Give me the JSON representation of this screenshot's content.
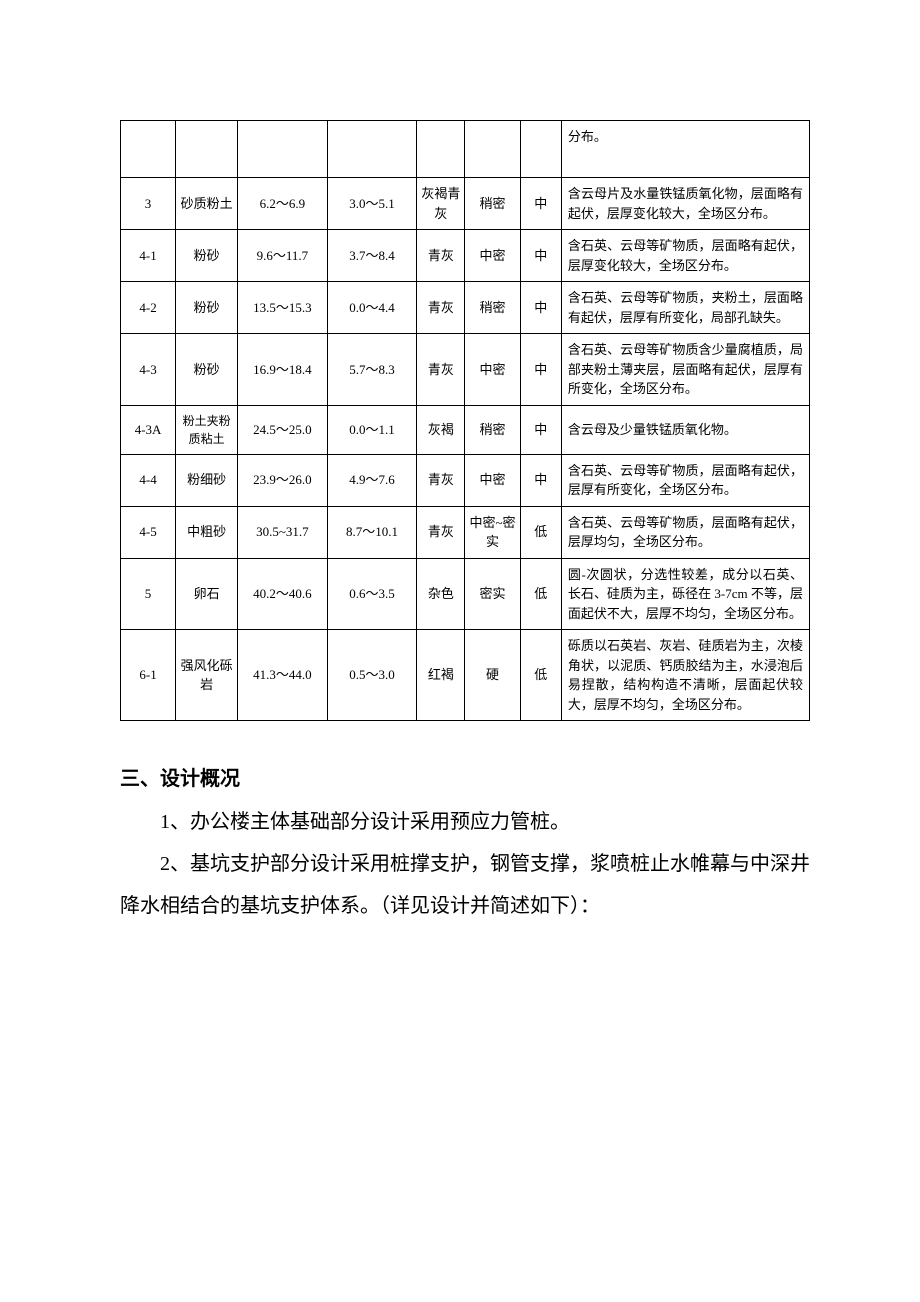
{
  "table": {
    "rows": [
      {
        "c0": "",
        "c1": "",
        "c2": "",
        "c3": "",
        "c4": "",
        "c5": "",
        "c6": "",
        "c7": "分布。",
        "partial": true
      },
      {
        "c0": "3",
        "c1": "砂质粉土",
        "c2": "6.2～6.9",
        "c3": "3.0～5.1",
        "c4": "灰褐青灰",
        "c5": "稍密",
        "c6": "中",
        "c7": "含云母片及水量铁锰质氧化物，层面略有起伏，层厚变化较大，全场区分布。"
      },
      {
        "c0": "4-1",
        "c1": "粉砂",
        "c2": "9.6～11.7",
        "c3": "3.7～8.4",
        "c4": "青灰",
        "c5": "中密",
        "c6": "中",
        "c7": "含石英、云母等矿物质，层面略有起伏，层厚变化较大，全场区分布。"
      },
      {
        "c0": "4-2",
        "c1": "粉砂",
        "c2": "13.5～15.3",
        "c3": "0.0～4.4",
        "c4": "青灰",
        "c5": "稍密",
        "c6": "中",
        "c7": "含石英、云母等矿物质，夹粉土，层面略有起伏，层厚有所变化，局部孔缺失。"
      },
      {
        "c0": "4-3",
        "c1": "粉砂",
        "c2": "16.9～18.4",
        "c3": "5.7～8.3",
        "c4": "青灰",
        "c5": "中密",
        "c6": "中",
        "c7": "含石英、云母等矿物质含少量腐植质，局部夹粉土薄夹层，层面略有起伏，层厚有所变化，全场区分布。"
      },
      {
        "c0": "4-3A",
        "c1": "粉土夹粉质粘土",
        "c1_small": true,
        "c2": "24.5～25.0",
        "c3": "0.0～1.1",
        "c4": "灰褐",
        "c5": "稍密",
        "c6": "中",
        "c7": "含云母及少量铁锰质氧化物。"
      },
      {
        "c0": "4-4",
        "c1": "粉细砂",
        "c2": "23.9～26.0",
        "c3": "4.9～7.6",
        "c4": "青灰",
        "c5": "中密",
        "c6": "中",
        "c7": "含石英、云母等矿物质，层面略有起伏，层厚有所变化，全场区分布。"
      },
      {
        "c0": "4-5",
        "c1": "中粗砂",
        "c2": "30.5~31.7",
        "c3": "8.7～10.1",
        "c4": "青灰",
        "c5": "中密~密实",
        "c6": "低",
        "c7": "含石英、云母等矿物质，层面略有起伏，层厚均匀，全场区分布。"
      },
      {
        "c0": "5",
        "c1": "卵石",
        "c2": "40.2～40.6",
        "c3": "0.6～3.5",
        "c4": "杂色",
        "c5": "密实",
        "c6": "低",
        "c7": "圆-次圆状，分选性较差，成分以石英、长石、硅质为主，砾径在 3-7cm 不等，层面起伏不大，层厚不均匀，全场区分布。"
      },
      {
        "c0": "6-1",
        "c1": "强风化砾岩",
        "c2": "41.3～44.0",
        "c3": "0.5～3.0",
        "c4": "红褐",
        "c5": "硬",
        "c6": "低",
        "c7": "砾质以石英岩、灰岩、硅质岩为主，次棱角状，以泥质、钙质胶结为主，水浸泡后易捏散，结构构造不清晰，层面起伏较大，层厚不均匀，全场区分布。"
      }
    ]
  },
  "section": {
    "title": "三、设计概况",
    "p1": "1、办公楼主体基础部分设计采用预应力管桩。",
    "p2": "2、基坑支护部分设计采用桩撑支护，钢管支撑，浆喷桩止水帷幕与中深井降水相结合的基坑支护体系。（详见设计并简述如下）："
  }
}
